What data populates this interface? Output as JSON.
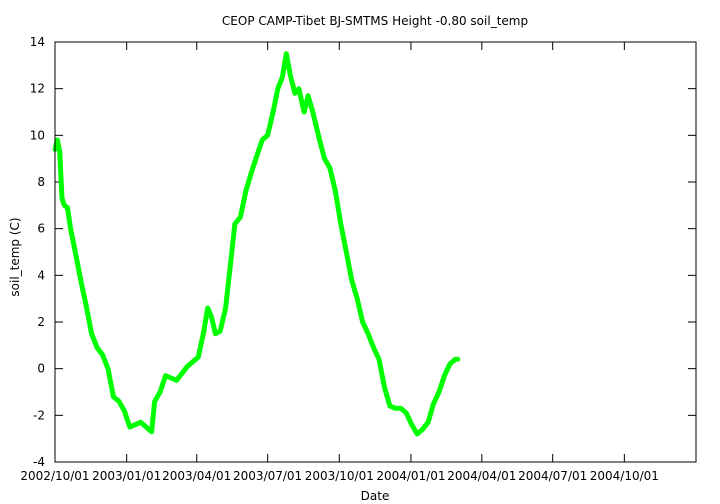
{
  "chart_data": {
    "type": "line",
    "title": "CEOP CAMP-Tibet BJ-SMTMS Height -0.80 soil_temp",
    "xlabel": "Date",
    "ylabel": "soil_temp (C)",
    "xlim": [
      "2002/10/01",
      "2005/01/01"
    ],
    "ylim": [
      -4,
      14
    ],
    "yticks": [
      -4,
      -2,
      0,
      2,
      4,
      6,
      8,
      10,
      12,
      14
    ],
    "xticks": [
      "2002/10/01",
      "2003/01/01",
      "2003/04/01",
      "2003/07/01",
      "2003/10/01",
      "2004/01/01",
      "2004/04/01",
      "2004/07/01",
      "2004/10/01"
    ],
    "grid": false,
    "legend": "none",
    "line_color": "#00ff00",
    "series": [
      {
        "points": [
          [
            "2002/10/01",
            9.4
          ],
          [
            "2002/10/04",
            9.8
          ],
          [
            "2002/10/07",
            9.3
          ],
          [
            "2002/10/10",
            7.3
          ],
          [
            "2002/10/13",
            7.0
          ],
          [
            "2002/10/17",
            6.9
          ],
          [
            "2002/10/21",
            6.0
          ],
          [
            "2002/10/27",
            5.0
          ],
          [
            "2002/11/03",
            3.8
          ],
          [
            "2002/11/10",
            2.7
          ],
          [
            "2002/11/17",
            1.5
          ],
          [
            "2002/11/24",
            0.9
          ],
          [
            "2002/12/01",
            0.6
          ],
          [
            "2002/12/08",
            0.0
          ],
          [
            "2002/12/15",
            -1.2
          ],
          [
            "2002/12/22",
            -1.4
          ],
          [
            "2002/12/29",
            -1.8
          ],
          [
            "2003/01/05",
            -2.5
          ],
          [
            "2003/01/12",
            -2.4
          ],
          [
            "2003/01/19",
            -2.3
          ],
          [
            "2003/01/26",
            -2.5
          ],
          [
            "2003/02/02",
            -2.7
          ],
          [
            "2003/02/06",
            -1.4
          ],
          [
            "2003/02/13",
            -1.0
          ],
          [
            "2003/02/20",
            -0.3
          ],
          [
            "2003/02/27",
            -0.4
          ],
          [
            "2003/03/06",
            -0.5
          ],
          [
            "2003/03/13",
            -0.2
          ],
          [
            "2003/03/20",
            0.1
          ],
          [
            "2003/03/27",
            0.3
          ],
          [
            "2003/04/03",
            0.5
          ],
          [
            "2003/04/10",
            1.6
          ],
          [
            "2003/04/15",
            2.6
          ],
          [
            "2003/04/20",
            2.2
          ],
          [
            "2003/04/25",
            1.5
          ],
          [
            "2003/05/01",
            1.6
          ],
          [
            "2003/05/08",
            2.6
          ],
          [
            "2003/05/13",
            4.1
          ],
          [
            "2003/05/20",
            6.2
          ],
          [
            "2003/05/27",
            6.5
          ],
          [
            "2003/06/03",
            7.6
          ],
          [
            "2003/06/10",
            8.4
          ],
          [
            "2003/06/17",
            9.1
          ],
          [
            "2003/06/24",
            9.8
          ],
          [
            "2003/07/01",
            10.0
          ],
          [
            "2003/07/08",
            11.0
          ],
          [
            "2003/07/14",
            12.0
          ],
          [
            "2003/07/20",
            12.5
          ],
          [
            "2003/07/25",
            13.5
          ],
          [
            "2003/07/30",
            12.6
          ],
          [
            "2003/08/05",
            11.8
          ],
          [
            "2003/08/10",
            12.0
          ],
          [
            "2003/08/17",
            11.0
          ],
          [
            "2003/08/22",
            11.7
          ],
          [
            "2003/08/28",
            11.0
          ],
          [
            "2003/09/05",
            9.9
          ],
          [
            "2003/09/12",
            9.0
          ],
          [
            "2003/09/19",
            8.6
          ],
          [
            "2003/09/26",
            7.6
          ],
          [
            "2003/10/03",
            6.2
          ],
          [
            "2003/10/10",
            5.0
          ],
          [
            "2003/10/17",
            3.8
          ],
          [
            "2003/10/24",
            3.0
          ],
          [
            "2003/10/31",
            2.0
          ],
          [
            "2003/11/07",
            1.5
          ],
          [
            "2003/11/14",
            0.9
          ],
          [
            "2003/11/21",
            0.4
          ],
          [
            "2003/11/28",
            -0.8
          ],
          [
            "2003/12/05",
            -1.6
          ],
          [
            "2003/12/12",
            -1.7
          ],
          [
            "2003/12/19",
            -1.7
          ],
          [
            "2003/12/26",
            -1.9
          ],
          [
            "2004/01/02",
            -2.4
          ],
          [
            "2004/01/09",
            -2.8
          ],
          [
            "2004/01/16",
            -2.6
          ],
          [
            "2004/01/23",
            -2.3
          ],
          [
            "2004/01/30",
            -1.5
          ],
          [
            "2004/02/06",
            -1.0
          ],
          [
            "2004/02/13",
            -0.3
          ],
          [
            "2004/02/20",
            0.2
          ],
          [
            "2004/02/27",
            0.4
          ],
          [
            "2004/03/01",
            0.4
          ]
        ]
      }
    ]
  }
}
